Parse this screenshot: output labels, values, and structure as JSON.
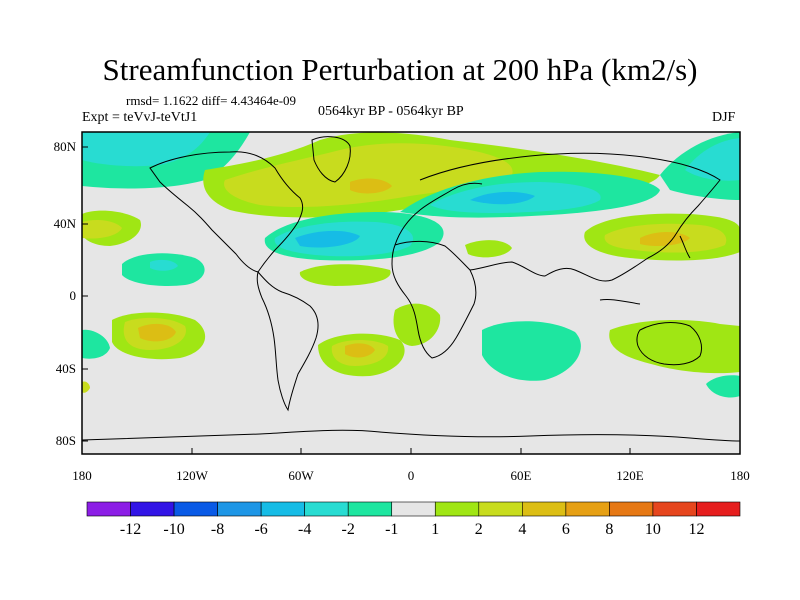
{
  "title": "Streamfunction Perturbation at 200 hPa (km2/s)",
  "stats": "rmsd= 1.1622 diff= 4.43464e-09",
  "experiment": "Expt = teVvJ-teVtJ1",
  "period": "0564kyr BP - 0564kyr BP",
  "season": "DJF",
  "axes": {
    "lat_ticks": [
      "80N",
      "40N",
      "0",
      "40S",
      "80S"
    ],
    "lon_ticks": [
      "180",
      "120W",
      "60W",
      "0",
      "60E",
      "120E",
      "180"
    ]
  },
  "colorbar": {
    "colors": [
      "#8c1ee6",
      "#3214e6",
      "#0a5ae6",
      "#1e96e6",
      "#16bce6",
      "#28dcd2",
      "#1ee6a0",
      "#e6e6e6",
      "#a0e614",
      "#c8dc1e",
      "#dcbe14",
      "#e6a014",
      "#e67814",
      "#e6461e",
      "#e61e1e"
    ],
    "labels": [
      "-12",
      "-10",
      "-8",
      "-6",
      "-4",
      "-2",
      "-1",
      "1",
      "2",
      "4",
      "6",
      "8",
      "10",
      "12"
    ]
  },
  "palette": {
    "neutral": "#e6e6e6",
    "pos1": "#a0e614",
    "pos2": "#c8dc1e",
    "pos3": "#dcbe14",
    "pos4": "#e6a014",
    "neg1": "#1ee6a0",
    "neg2": "#28dcd2",
    "neg3": "#16bce6",
    "neg4": "#1e96e6"
  }
}
